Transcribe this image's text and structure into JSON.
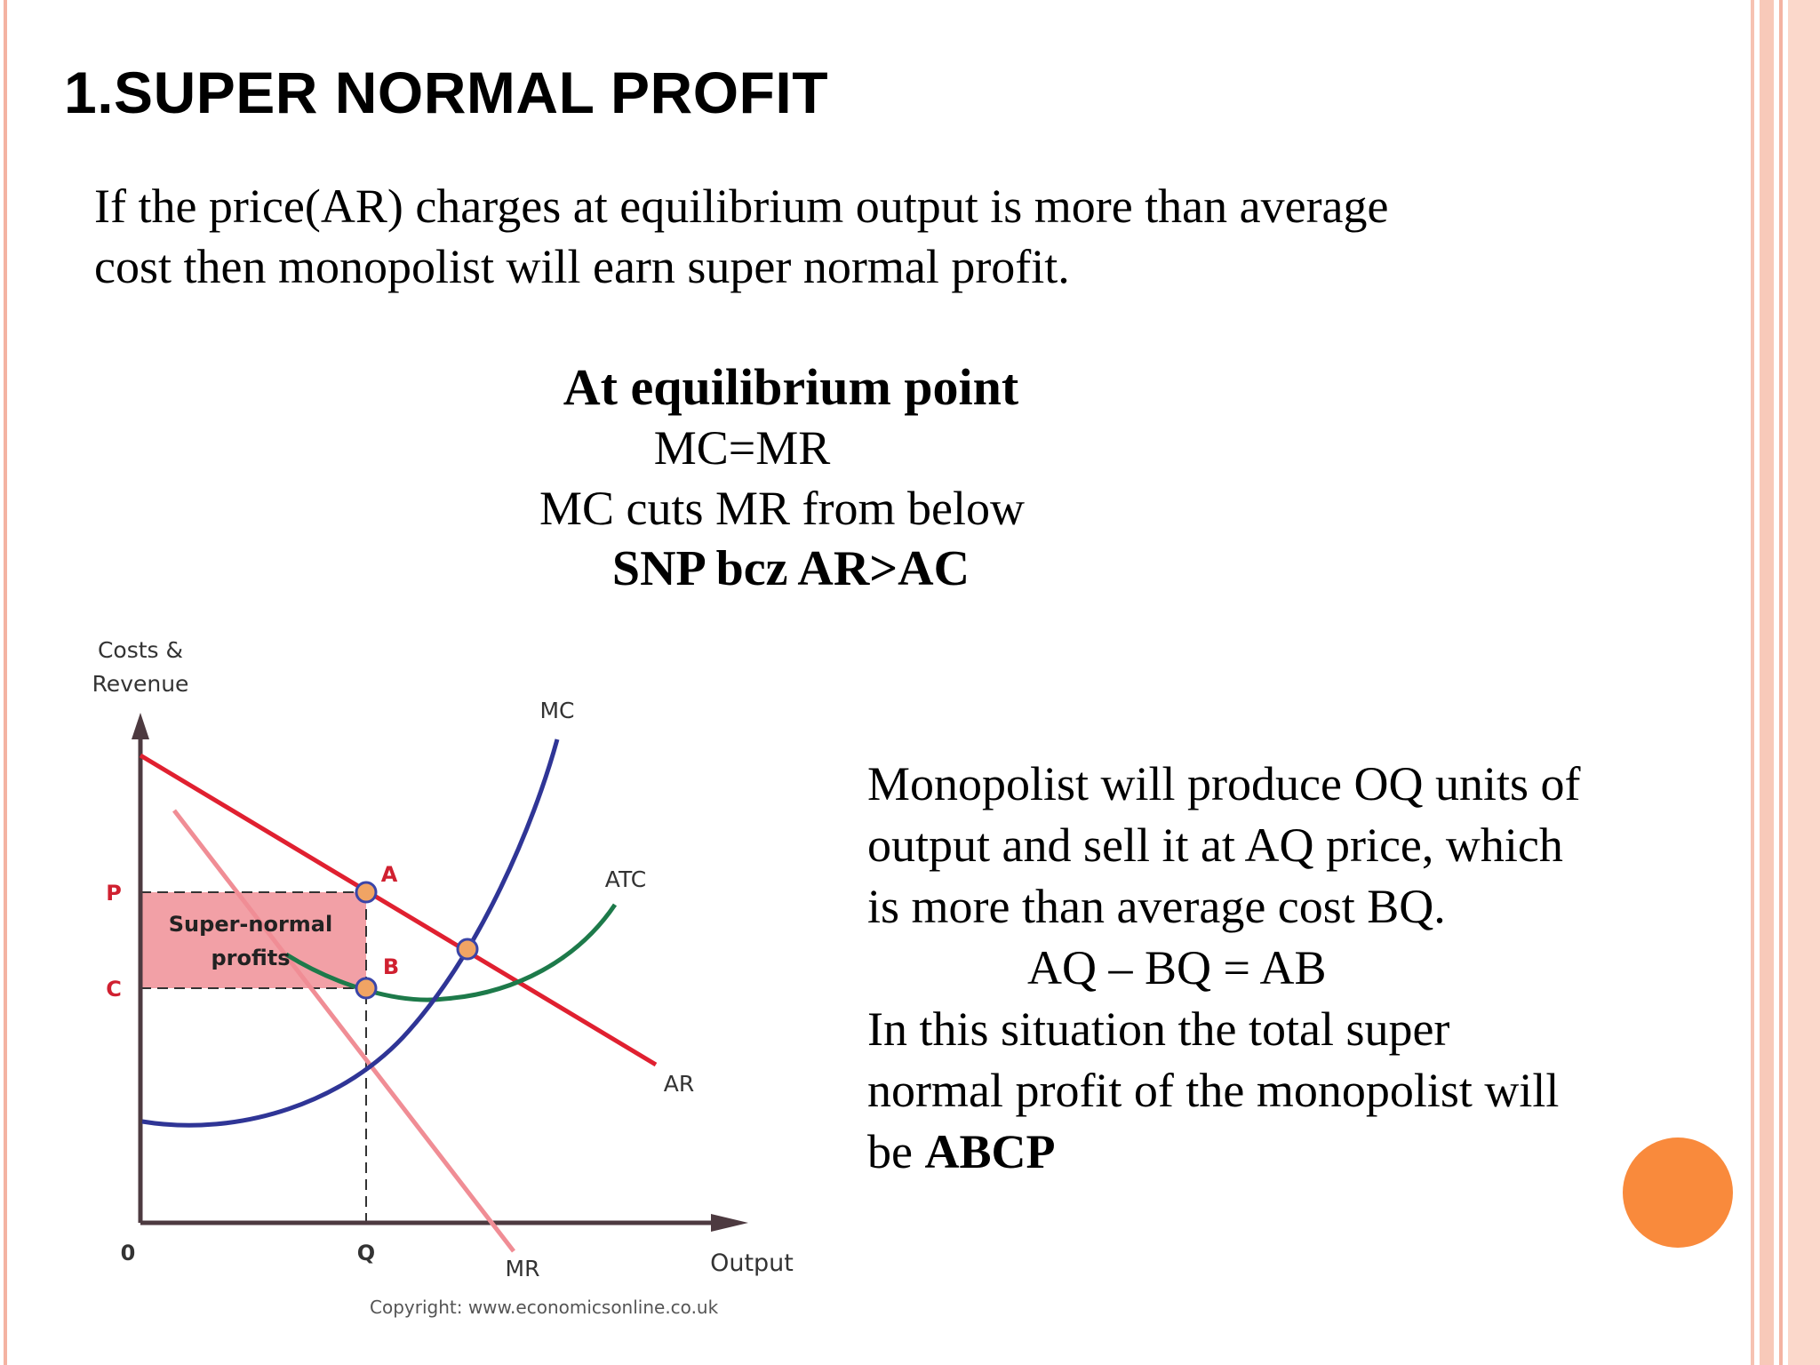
{
  "slide": {
    "title": "1.SUPER NORMAL PROFIT",
    "intro_line1": "If the price(AR) charges at equilibrium output is more than average",
    "intro_line2": "cost then monopolist will earn super normal profit."
  },
  "equilibrium": {
    "heading": "At equilibrium point",
    "line1": "MC=MR",
    "line2": "MC cuts MR from below",
    "line3": "SNP bcz AR>AC"
  },
  "explanation": {
    "line1": "Monopolist will produce OQ units of",
    "line2": "output and sell it at AQ price, which",
    "line3": "is more than average cost BQ.",
    "equation": "AQ – BQ = AB",
    "line4": "In this situation the total super",
    "line5": "normal profit of the monopolist will",
    "line6_prefix": "be ",
    "line6_bold": "ABCP"
  },
  "diagram": {
    "y_axis_label_line1": "Costs &",
    "y_axis_label_line2": "Revenue",
    "x_axis_label": "Output",
    "origin_label": "0",
    "price_label": "P",
    "cost_label": "C",
    "quantity_label": "Q",
    "point_a_label": "A",
    "point_b_label": "B",
    "curve_mc_label": "MC",
    "curve_atc_label": "ATC",
    "curve_ar_label": "AR",
    "curve_mr_label": "MR",
    "region_label_line1": "Super-normal",
    "region_label_line2": "profits",
    "copyright": "Copyright: www.economicsonline.co.uk",
    "colors": {
      "ar": "#e02030",
      "mr": "#f08d95",
      "mc": "#2f3596",
      "atc": "#1d7a4a",
      "region": "#f2a0a6",
      "axis": "#4d3a40",
      "point_fill": "#f0a464",
      "point_stroke": "#3a45a8"
    }
  },
  "decor": {
    "accent_color": "#f98a3c",
    "border_color": "#f4b3a2"
  }
}
